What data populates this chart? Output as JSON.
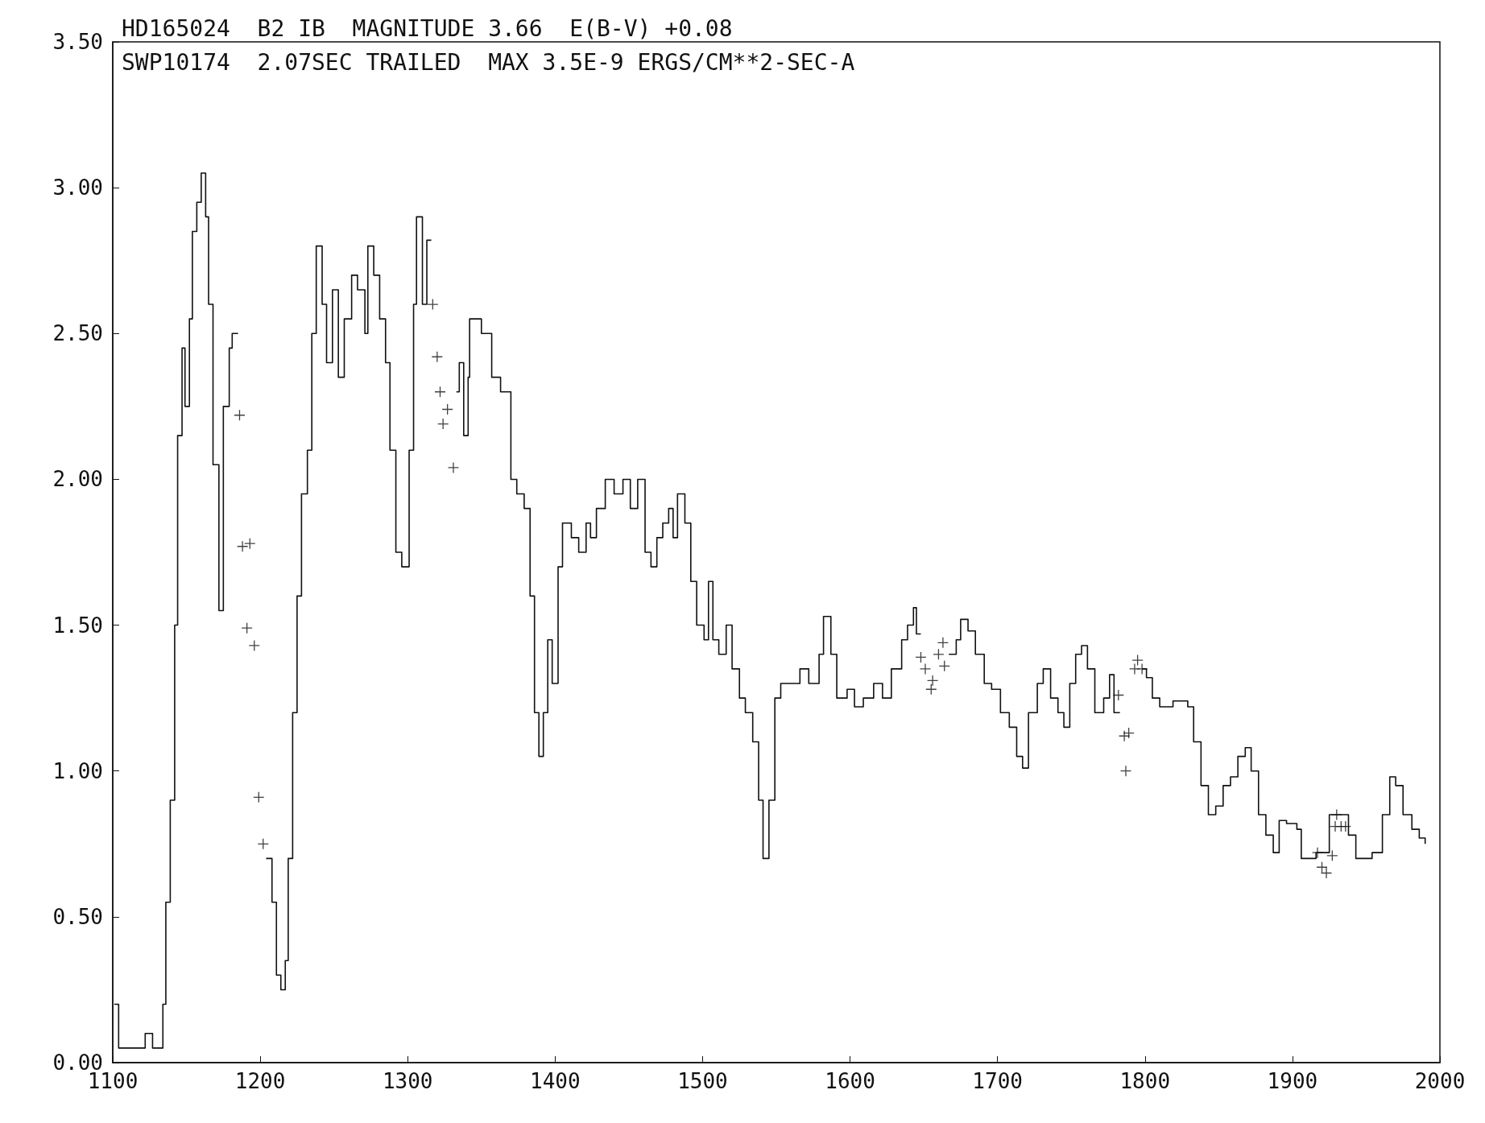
{
  "chart_data": {
    "type": "step",
    "title": "HD165024  B2 IB  MAGNITUDE 3.66  E(B-V) +0.08",
    "subtitle": "SWP10174  2.07SEC TRAILED  MAX 3.5E-9 ERGS/CM**2-SEC-A",
    "xlim": [
      1100,
      2000
    ],
    "xticks": [
      1100,
      1200,
      1300,
      1400,
      1500,
      1600,
      1700,
      1800,
      1900,
      2000
    ],
    "ylim": [
      0,
      3.5
    ],
    "yticks": [
      {
        "value": 0,
        "label": "0.00"
      },
      {
        "value": 0.5,
        "label": "0.50"
      },
      {
        "value": 1,
        "label": "1.00"
      },
      {
        "value": 1.5,
        "label": "1.50"
      },
      {
        "value": 2,
        "label": "2.00"
      },
      {
        "value": 2.5,
        "label": "2.50"
      },
      {
        "value": 3,
        "label": "3.00"
      },
      {
        "value": 3.5,
        "label": "3.50"
      }
    ],
    "grid": false,
    "series": [
      {
        "color": "#111111",
        "line_style": "solid",
        "marker": "none",
        "x": [
          1101,
          1104,
          1111,
          1122,
          1127,
          1132,
          1134,
          1136,
          1139,
          1142,
          1144,
          1147,
          1149,
          1152,
          1154,
          1157,
          1160,
          1163,
          1165,
          1168,
          1172,
          1175,
          1179,
          1181,
          1185,
          1204,
          1208,
          1211,
          1214,
          1217,
          1219,
          1222,
          1225,
          1228,
          1232,
          1235,
          1238,
          1242,
          1245,
          1249,
          1253,
          1257,
          1262,
          1266,
          1271,
          1273,
          1277,
          1281,
          1285,
          1288,
          1292,
          1296,
          1301,
          1304,
          1306,
          1310,
          1313,
          1316,
          1333,
          1335,
          1338,
          1341,
          1342,
          1350,
          1357,
          1363,
          1370,
          1374,
          1379,
          1383,
          1386,
          1389,
          1392,
          1395,
          1398,
          1402,
          1405,
          1411,
          1416,
          1421,
          1424,
          1428,
          1434,
          1440,
          1446,
          1451,
          1456,
          1461,
          1465,
          1469,
          1473,
          1477,
          1480,
          1483,
          1488,
          1492,
          1496,
          1501,
          1504,
          1507,
          1511,
          1516,
          1520,
          1525,
          1529,
          1534,
          1538,
          1541,
          1545,
          1549,
          1553,
          1560,
          1566,
          1572,
          1579,
          1582,
          1587,
          1591,
          1598,
          1603,
          1609,
          1616,
          1622,
          1628,
          1635,
          1639,
          1643,
          1645,
          1648,
          1667,
          1672,
          1675,
          1680,
          1685,
          1691,
          1696,
          1702,
          1708,
          1713,
          1717,
          1721,
          1727,
          1731,
          1736,
          1741,
          1745,
          1749,
          1753,
          1757,
          1761,
          1766,
          1772,
          1776,
          1779,
          1783,
          1798,
          1801,
          1805,
          1810,
          1819,
          1829,
          1833,
          1838,
          1843,
          1848,
          1853,
          1858,
          1863,
          1868,
          1872,
          1877,
          1882,
          1887,
          1891,
          1896,
          1903,
          1906,
          1916,
          1925,
          1931,
          1938,
          1943,
          1954,
          1961,
          1966,
          1970,
          1975,
          1981,
          1986,
          1990
        ],
        "values": [
          0.2,
          0.05,
          0.05,
          0.1,
          0.05,
          0.05,
          0.2,
          0.55,
          0.9,
          1.5,
          2.15,
          2.45,
          2.25,
          2.55,
          2.85,
          2.95,
          3.05,
          2.9,
          2.6,
          2.05,
          1.55,
          2.25,
          2.45,
          2.5,
          null,
          0.7,
          0.55,
          0.3,
          0.25,
          0.35,
          0.7,
          1.2,
          1.6,
          1.95,
          2.1,
          2.5,
          2.8,
          2.6,
          2.4,
          2.65,
          2.35,
          2.55,
          2.7,
          2.65,
          2.5,
          2.8,
          2.7,
          2.55,
          2.4,
          2.1,
          1.75,
          1.7,
          2.1,
          2.6,
          2.9,
          2.6,
          2.82,
          null,
          2.3,
          2.4,
          2.15,
          2.35,
          2.55,
          2.5,
          2.35,
          2.3,
          2.0,
          1.95,
          1.9,
          1.6,
          1.2,
          1.05,
          1.2,
          1.45,
          1.3,
          1.7,
          1.85,
          1.8,
          1.75,
          1.85,
          1.8,
          1.9,
          2.0,
          1.95,
          2.0,
          1.9,
          2.0,
          1.75,
          1.7,
          1.8,
          1.85,
          1.9,
          1.8,
          1.95,
          1.85,
          1.65,
          1.5,
          1.45,
          1.65,
          1.45,
          1.4,
          1.5,
          1.35,
          1.25,
          1.2,
          1.1,
          0.9,
          0.7,
          0.9,
          1.25,
          1.3,
          1.3,
          1.35,
          1.3,
          1.4,
          1.53,
          1.4,
          1.25,
          1.28,
          1.22,
          1.25,
          1.3,
          1.25,
          1.35,
          1.45,
          1.5,
          1.56,
          1.47,
          null,
          1.4,
          1.45,
          1.52,
          1.48,
          1.4,
          1.3,
          1.28,
          1.2,
          1.15,
          1.05,
          1.01,
          1.2,
          1.3,
          1.35,
          1.25,
          1.2,
          1.15,
          1.3,
          1.4,
          1.43,
          1.35,
          1.2,
          1.25,
          1.33,
          1.2,
          null,
          1.35,
          1.32,
          1.25,
          1.22,
          1.24,
          1.22,
          1.1,
          0.95,
          0.85,
          0.88,
          0.95,
          0.98,
          1.05,
          1.08,
          1.0,
          0.85,
          0.78,
          0.72,
          0.83,
          0.82,
          0.8,
          0.7,
          0.72,
          0.85,
          0.85,
          0.78,
          0.7,
          0.72,
          0.85,
          0.98,
          0.95,
          0.85,
          0.8,
          0.77,
          0.75
        ]
      },
      {
        "type": "scatter",
        "color": "#111111",
        "marker": "cross",
        "x": [
          1186,
          1188,
          1193,
          1191,
          1196,
          1199,
          1202,
          1317,
          1320,
          1322,
          1324,
          1327,
          1331,
          1648,
          1651,
          1656,
          1655,
          1660,
          1663,
          1664,
          1782,
          1786,
          1789,
          1787,
          1795,
          1793,
          1798,
          1917,
          1920,
          1923,
          1927,
          1930,
          1929,
          1933,
          1936
        ],
        "values": [
          2.22,
          1.77,
          1.78,
          1.49,
          1.43,
          0.91,
          0.75,
          2.6,
          2.42,
          2.3,
          2.19,
          2.24,
          2.04,
          1.39,
          1.35,
          1.31,
          1.28,
          1.4,
          1.44,
          1.36,
          1.26,
          1.12,
          1.13,
          1.0,
          1.38,
          1.35,
          1.35,
          0.72,
          0.67,
          0.65,
          0.71,
          0.85,
          0.81,
          0.81,
          0.81
        ]
      }
    ]
  }
}
